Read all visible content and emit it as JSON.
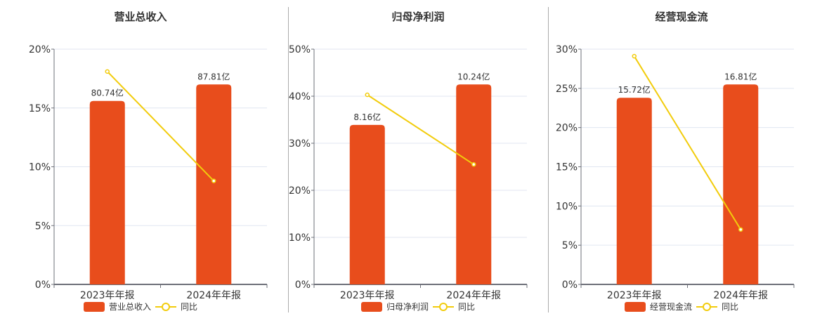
{
  "colors": {
    "bar": "#e84d1c",
    "line": "#f2cc0c",
    "grid": "#e0e6f1",
    "axis": "#6e7079",
    "text": "#333333"
  },
  "charts": [
    {
      "title": "营业总收入",
      "legend_bar": "营业总收入",
      "legend_line": "同比",
      "yticks": [
        "0%",
        "5%",
        "10%",
        "15%",
        "20%"
      ],
      "ymax": 20,
      "categories": [
        "2023年年报",
        "2024年年报"
      ],
      "bar_labels": [
        "80.74亿",
        "87.81亿"
      ]
    },
    {
      "title": "归母净利润",
      "legend_bar": "归母净利润",
      "legend_line": "同比",
      "yticks": [
        "0%",
        "10%",
        "20%",
        "30%",
        "40%",
        "50%"
      ],
      "ymax": 50,
      "categories": [
        "2023年年报",
        "2024年年报"
      ],
      "bar_labels": [
        "8.16亿",
        "10.24亿"
      ]
    },
    {
      "title": "经营现金流",
      "legend_bar": "经营现金流",
      "legend_line": "同比",
      "yticks": [
        "0%",
        "5%",
        "10%",
        "15%",
        "20%",
        "25%",
        "30%"
      ],
      "ymax": 30,
      "categories": [
        "2023年年报",
        "2024年年报"
      ],
      "bar_labels": [
        "15.72亿",
        "16.81亿"
      ]
    }
  ],
  "chart_data": [
    {
      "type": "bar",
      "title": "营业总收入",
      "categories": [
        "2023年年报",
        "2024年年报"
      ],
      "series": [
        {
          "name": "营业总收入",
          "type": "bar",
          "labels": [
            "80.74亿",
            "87.81亿"
          ],
          "values": [
            80.74,
            87.81
          ],
          "plotted_height_pct": [
            15.6,
            17.0
          ]
        },
        {
          "name": "同比",
          "type": "line",
          "values": [
            18.1,
            8.8
          ]
        }
      ],
      "ylabel": "",
      "ylim": [
        0,
        20
      ],
      "yticks": [
        "0%",
        "5%",
        "10%",
        "15%",
        "20%"
      ],
      "grid": true,
      "legend_position": "bottom"
    },
    {
      "type": "bar",
      "title": "归母净利润",
      "categories": [
        "2023年年报",
        "2024年年报"
      ],
      "series": [
        {
          "name": "归母净利润",
          "type": "bar",
          "labels": [
            "8.16亿",
            "10.24亿"
          ],
          "values": [
            8.16,
            10.24
          ],
          "plotted_height_pct": [
            33.9,
            42.5
          ]
        },
        {
          "name": "同比",
          "type": "line",
          "values": [
            40.3,
            25.5
          ]
        }
      ],
      "ylabel": "",
      "ylim": [
        0,
        50
      ],
      "yticks": [
        "0%",
        "10%",
        "20%",
        "30%",
        "40%",
        "50%"
      ],
      "grid": true,
      "legend_position": "bottom"
    },
    {
      "type": "bar",
      "title": "经营现金流",
      "categories": [
        "2023年年报",
        "2024年年报"
      ],
      "series": [
        {
          "name": "经营现金流",
          "type": "bar",
          "labels": [
            "15.72亿",
            "16.81亿"
          ],
          "values": [
            15.72,
            16.81
          ],
          "plotted_height_pct": [
            23.8,
            25.5
          ]
        },
        {
          "name": "同比",
          "type": "line",
          "values": [
            29.1,
            7.0
          ]
        }
      ],
      "ylabel": "",
      "ylim": [
        0,
        30
      ],
      "yticks": [
        "0%",
        "5%",
        "10%",
        "15%",
        "20%",
        "25%",
        "30%"
      ],
      "grid": true,
      "legend_position": "bottom"
    }
  ]
}
